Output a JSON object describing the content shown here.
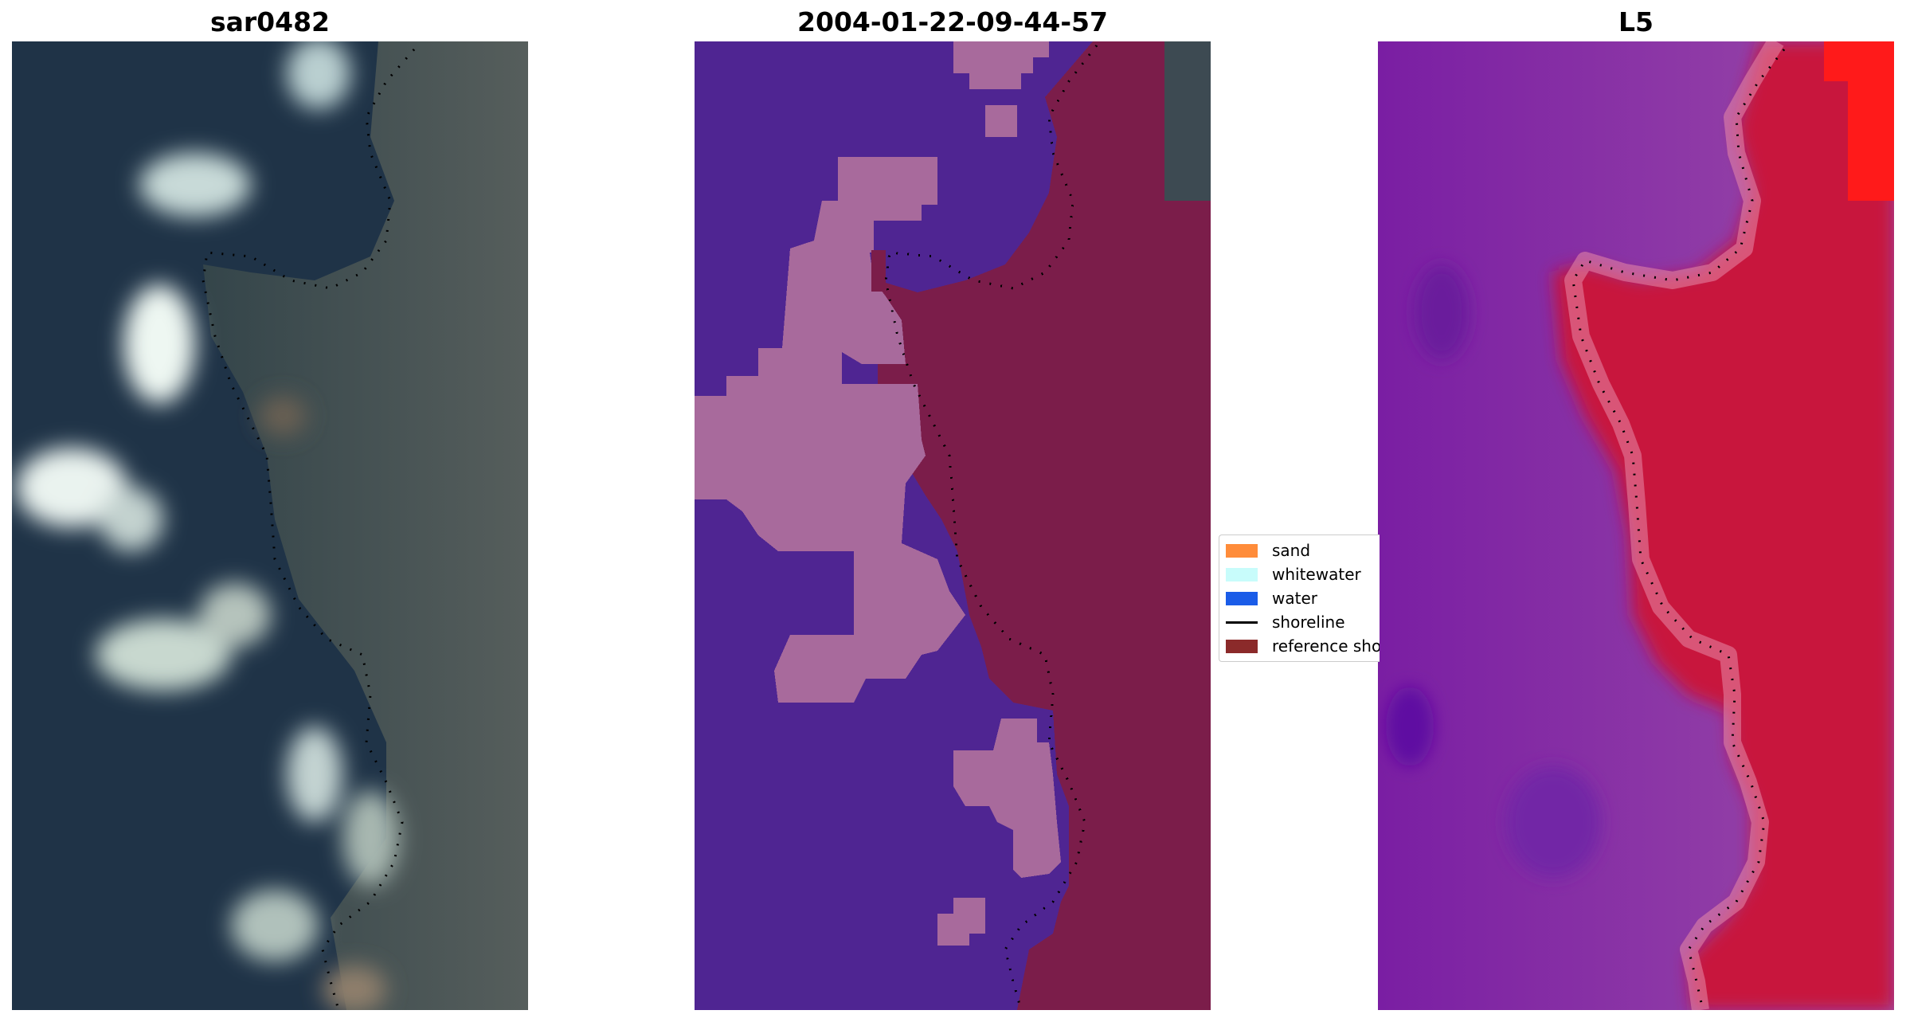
{
  "panels": {
    "left_title": "sar0482",
    "middle_title": "2004-01-22-09-44-57",
    "right_title": "L5"
  },
  "legend": {
    "items": [
      {
        "label": "sand",
        "color": "#ff8c3a"
      },
      {
        "label": "whitewater",
        "color": "#c8fcfb"
      },
      {
        "label": "water",
        "color": "#1a5ce8"
      },
      {
        "label": "shoreline",
        "color": "#000000"
      },
      {
        "label": "reference shoreline",
        "color": "#8b2a2a"
      }
    ]
  },
  "colors": {
    "rgb_ocean": "#1e3347",
    "rgb_land": "#4a5556",
    "class_water": "#4f2592",
    "class_whitewater": "#a86a9c",
    "class_land": "#7b1d4a",
    "index_water": "#8e36ac",
    "index_land": "#c8143c"
  }
}
